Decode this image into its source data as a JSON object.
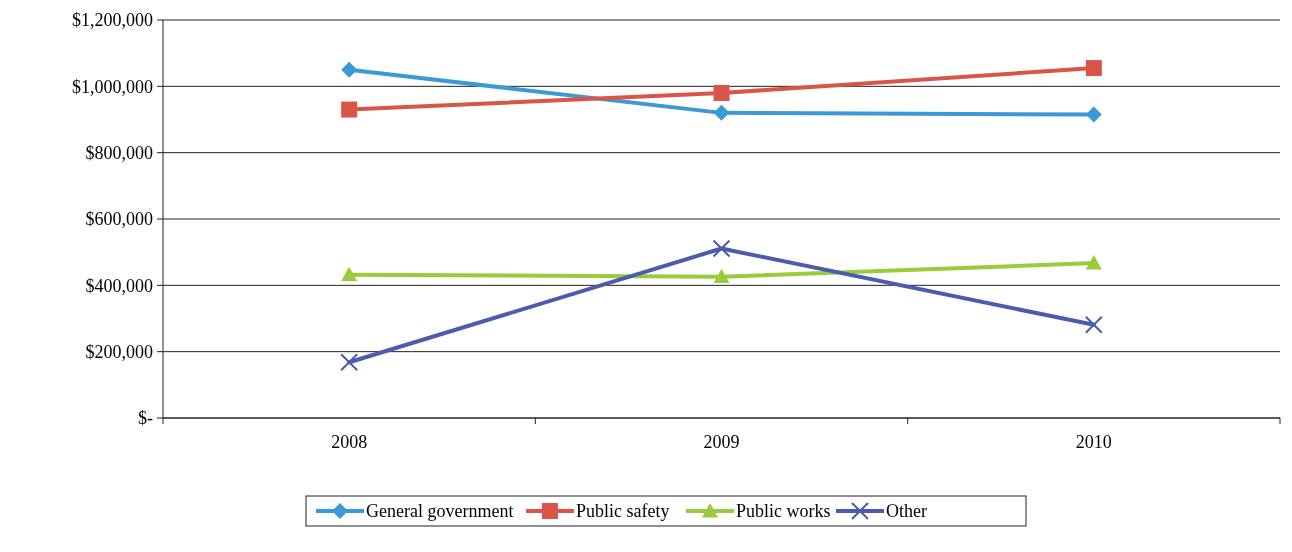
{
  "chart_data": {
    "type": "line",
    "categories": [
      "2008",
      "2009",
      "2010"
    ],
    "series": [
      {
        "name": "General government",
        "color": "#3b9ad6",
        "marker": "diamond",
        "values": [
          1050000,
          920000,
          915000
        ]
      },
      {
        "name": "Public safety",
        "color": "#d9554a",
        "marker": "square",
        "values": [
          930000,
          980000,
          1055000
        ]
      },
      {
        "name": "Public works",
        "color": "#9acb3c",
        "marker": "triangle",
        "values": [
          432000,
          426000,
          467000
        ]
      },
      {
        "name": "Other",
        "color": "#4b5cae",
        "marker": "cross",
        "values": [
          168000,
          511000,
          281000
        ]
      }
    ],
    "ylim": [
      0,
      1200000
    ],
    "yticks": [
      {
        "value": 0,
        "label": "$-"
      },
      {
        "value": 200000,
        "label": "$200,000"
      },
      {
        "value": 400000,
        "label": "$400,000"
      },
      {
        "value": 600000,
        "label": "$600,000"
      },
      {
        "value": 800000,
        "label": "$800,000"
      },
      {
        "value": 1000000,
        "label": "$1,000,000"
      },
      {
        "value": 1200000,
        "label": "$1,200,000"
      }
    ],
    "grid": "y",
    "legend": "bottom",
    "line_style": "solid"
  }
}
